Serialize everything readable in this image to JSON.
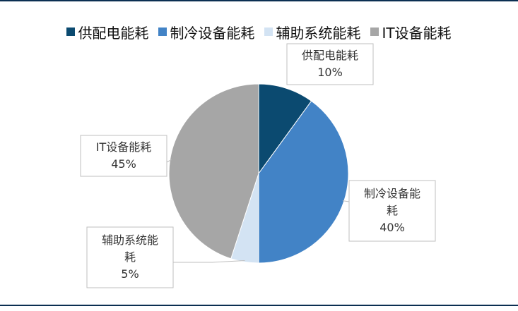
{
  "chart_data": {
    "type": "pie",
    "categories": [
      "供配电能耗",
      "制冷设备能耗",
      "辅助系统能耗",
      "IT设备能耗"
    ],
    "values": [
      10,
      40,
      5,
      45
    ],
    "colors": [
      "#0b4a70",
      "#4283c6",
      "#d3e3f3",
      "#a6a6a6"
    ],
    "legend_position": "top",
    "data_labels": [
      {
        "name_lines": [
          "供配电能耗"
        ],
        "value": "10%"
      },
      {
        "name_lines": [
          "制冷设备能",
          "耗"
        ],
        "value": "40%"
      },
      {
        "name_lines": [
          "辅助系统能",
          "耗"
        ],
        "value": "5%"
      },
      {
        "name_lines": [
          "IT设备能耗"
        ],
        "value": "45%"
      }
    ]
  }
}
